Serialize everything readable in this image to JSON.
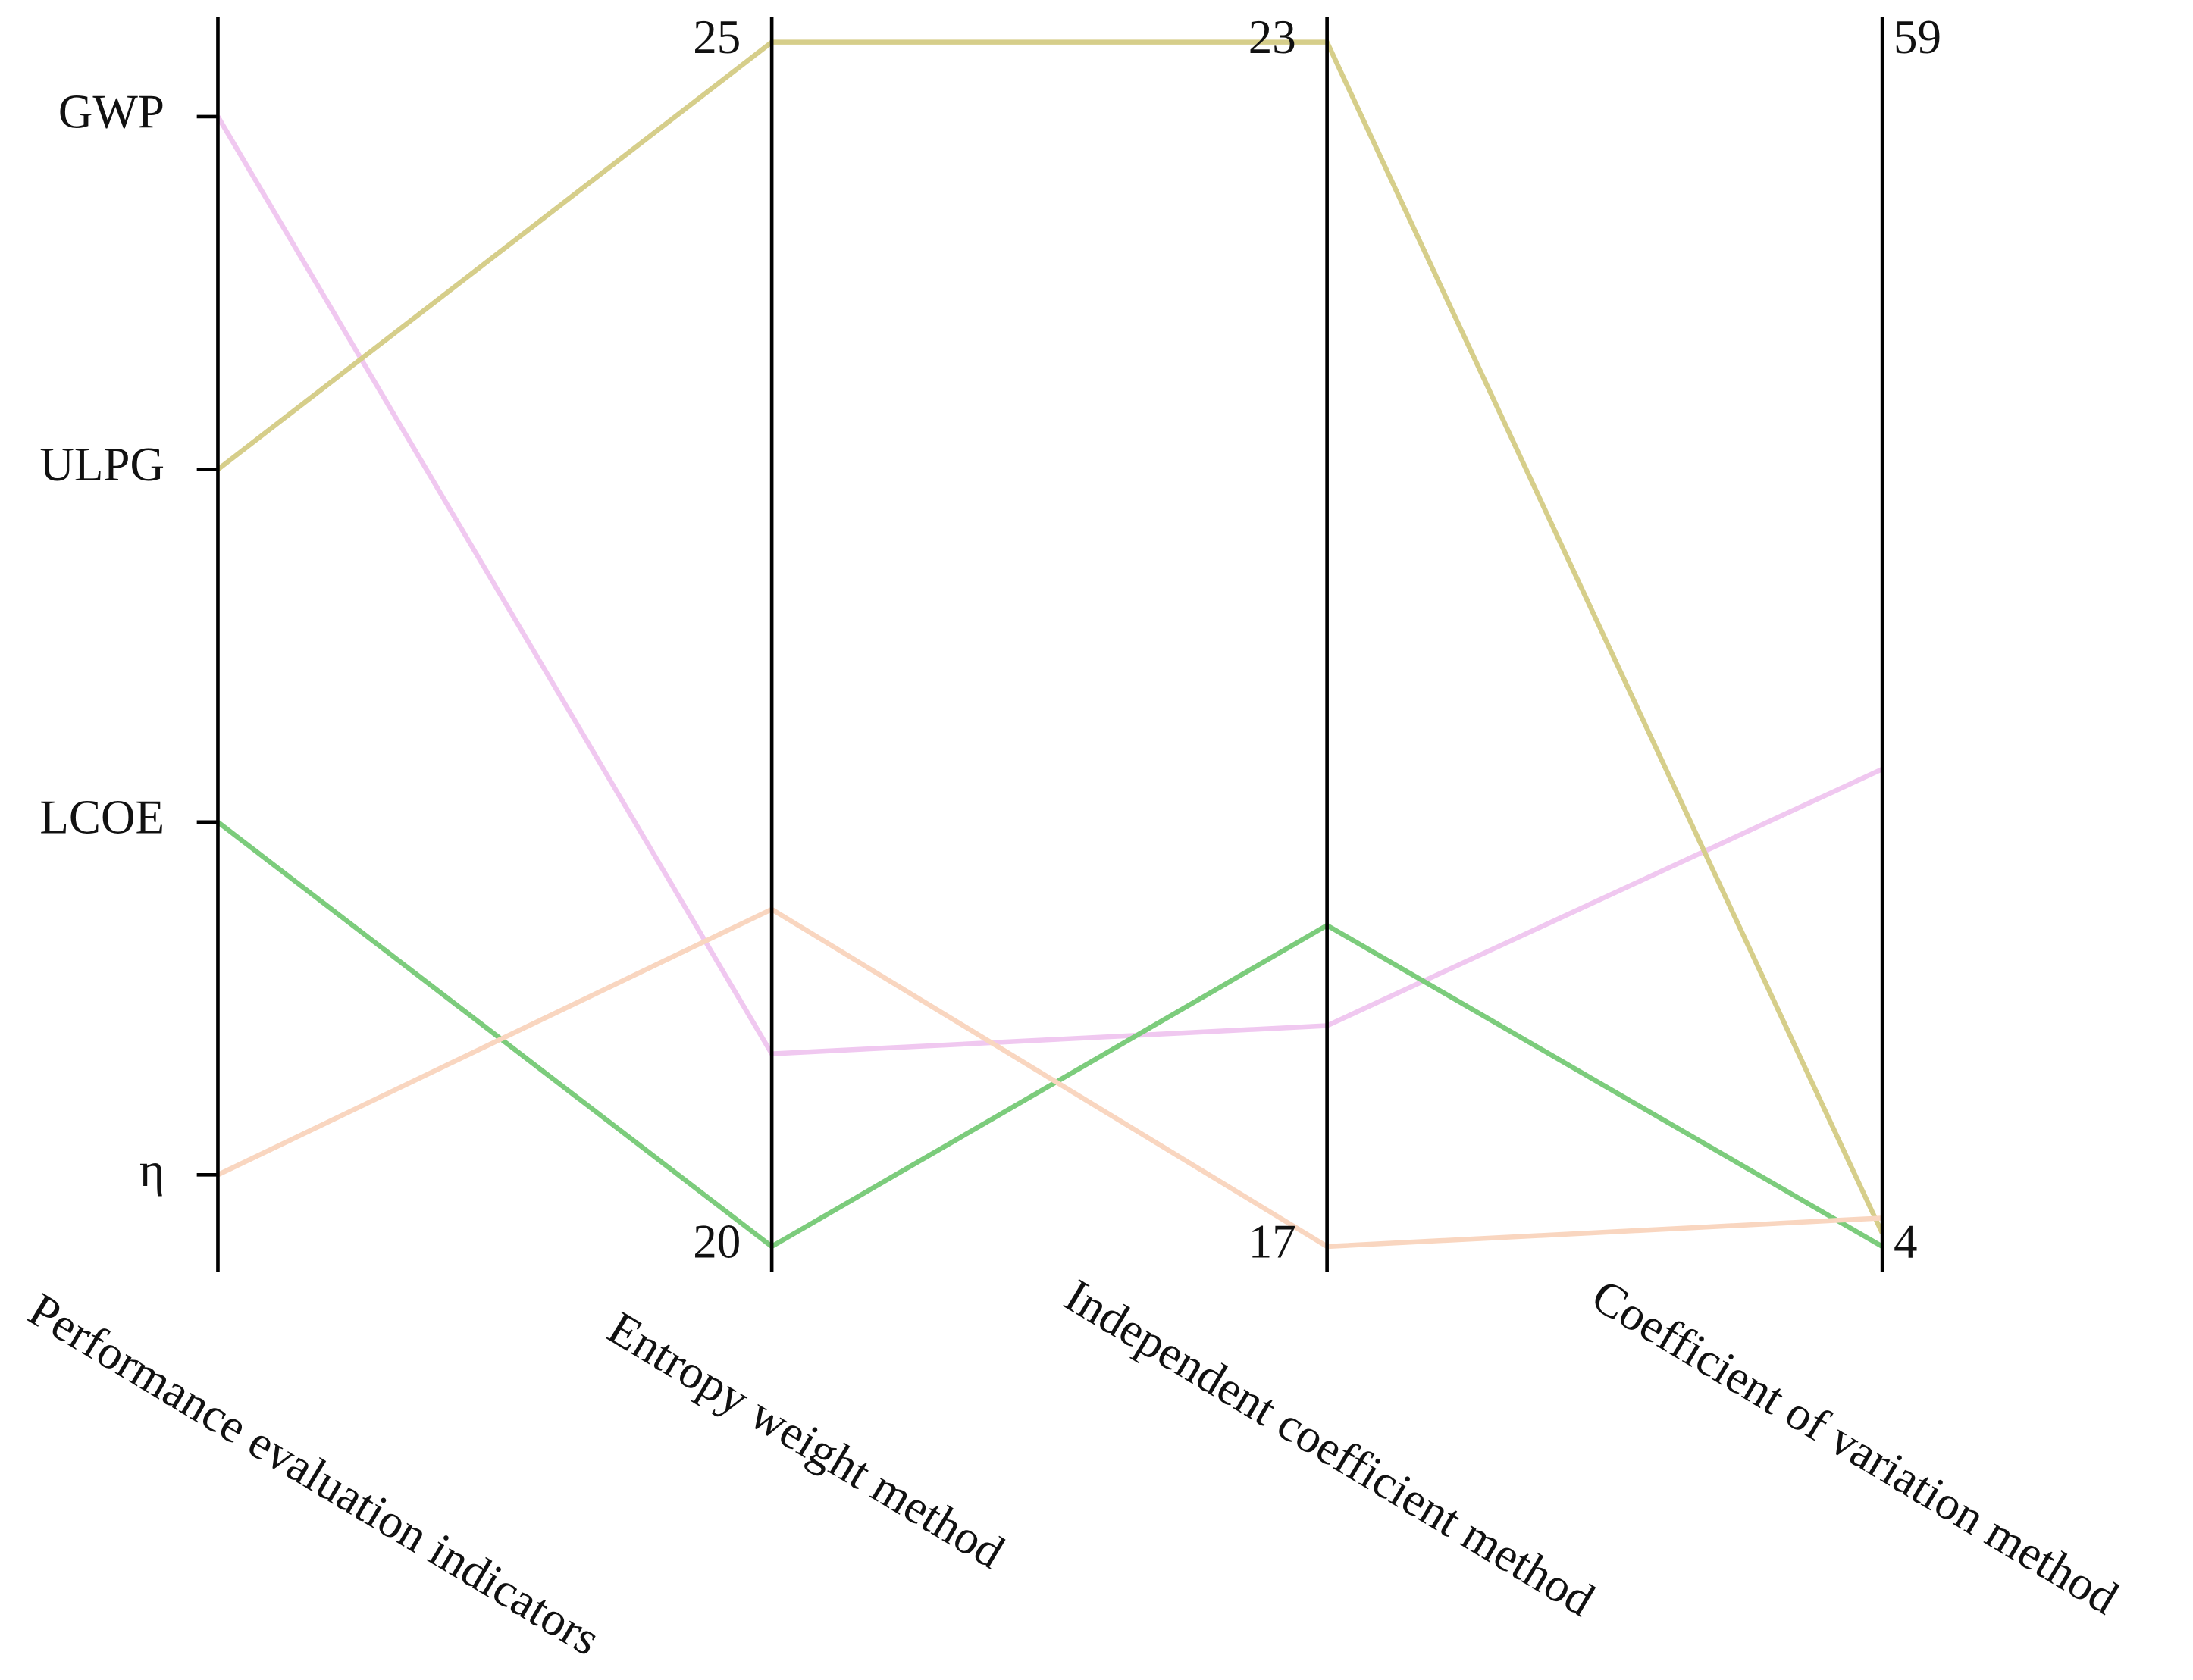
{
  "chart_data": {
    "type": "parallel",
    "category_axis": {
      "label": "Performance evaluation indicators",
      "categories": [
        "GWP",
        "ULPG",
        "LCOE",
        "η"
      ]
    },
    "axes": [
      {
        "label": "Entropy weight method",
        "ylim": [
          20,
          25
        ],
        "yticks": [
          20,
          25
        ]
      },
      {
        "label": "Independent coefficient method",
        "ylim": [
          17,
          23
        ],
        "yticks": [
          17,
          23
        ]
      },
      {
        "label": "Coefficient of variation method",
        "ylim": [
          4,
          59
        ],
        "yticks": [
          4,
          59
        ]
      }
    ],
    "colors": [
      "#f0c8f0",
      "#d6ce8a",
      "#7ccc7c",
      "#f9d6c0"
    ],
    "values": [
      [
        20.8,
        18.1,
        25.8
      ],
      [
        25,
        23,
        4.6
      ],
      [
        20,
        18.6,
        4
      ],
      [
        21.4,
        17,
        5.3
      ]
    ]
  }
}
